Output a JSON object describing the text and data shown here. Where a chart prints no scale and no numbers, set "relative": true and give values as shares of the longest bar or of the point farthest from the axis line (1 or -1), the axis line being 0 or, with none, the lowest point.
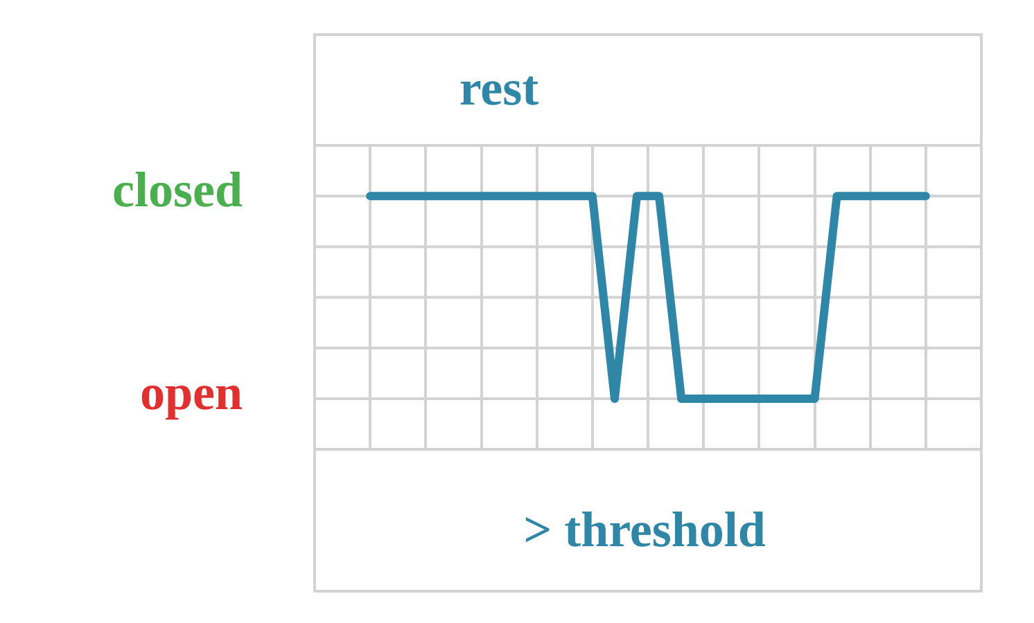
{
  "chart_data": {
    "type": "line",
    "relative": true,
    "annotations": [
      "rest",
      "> threshold",
      "closed",
      "open"
    ],
    "categories": [
      null,
      null,
      null,
      null,
      null,
      null,
      null,
      null,
      null,
      null,
      null,
      null,
      null,
      null,
      null,
      null,
      null,
      null,
      null,
      null,
      null,
      null,
      null,
      null,
      null,
      null,
      null,
      null,
      null,
      null,
      null,
      null,
      null,
      null,
      null,
      null,
      null,
      null,
      null,
      null,
      null,
      null,
      null,
      null,
      null,
      null,
      null,
      null,
      null,
      null,
      null,
      null,
      null,
      null,
      null,
      null,
      null,
      null,
      null,
      null,
      null
    ],
    "series": [
      {
        "color": "#2f86a6",
        "values": [
          null,
          null,
          null,
          null,
          null,
          1,
          1,
          1,
          1,
          1,
          1,
          1,
          1,
          1,
          1,
          1,
          1,
          1,
          1,
          1,
          1,
          1,
          1,
          1,
          1,
          1,
          0.5,
          0,
          0.5,
          1,
          1,
          1,
          0.5,
          0,
          0,
          0,
          0,
          0,
          0,
          0,
          0,
          0,
          0,
          0,
          0,
          0,
          0.5,
          1,
          1,
          1,
          1,
          1,
          1,
          1,
          1,
          1,
          null,
          null,
          null,
          null,
          null
        ]
      }
    ],
    "grid": true,
    "legend": false,
    "marker": "none",
    "line_style": "solid"
  }
}
